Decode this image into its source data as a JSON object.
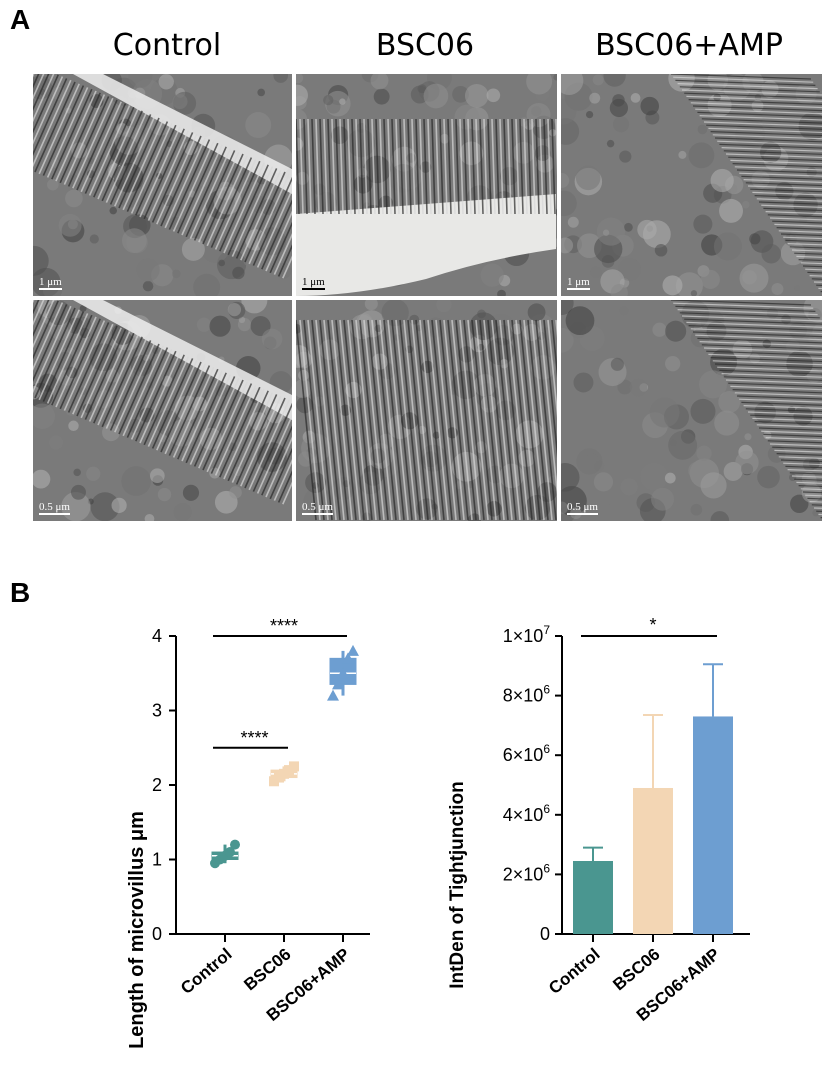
{
  "panels": {
    "a": "A",
    "b": "B"
  },
  "columns": [
    "Control",
    "BSC06",
    "BSC06+AMP"
  ],
  "micrographs": {
    "row1_scale": [
      "1 μm",
      "1 μm",
      "1 μm"
    ],
    "row2_scale": [
      "0.5 μm",
      "0.5 μm",
      "0.5 μm"
    ]
  },
  "chart_data": [
    {
      "type": "box",
      "ylabel": "Length of microvillus μm",
      "xlabel": "",
      "categories": [
        "Control",
        "BSC06",
        "BSC06+AMP"
      ],
      "ylim": [
        0,
        4
      ],
      "yticks": [
        "0",
        "1",
        "2",
        "3",
        "4"
      ],
      "series": [
        {
          "values": [
            0.95,
            1.0,
            1.05,
            1.1,
            1.2
          ]
        },
        {
          "values": [
            2.05,
            2.1,
            2.15,
            2.2,
            2.25
          ]
        },
        {
          "values": [
            3.2,
            3.35,
            3.5,
            3.7,
            3.8
          ]
        }
      ],
      "marker_shapes": [
        "circle",
        "square",
        "triangle"
      ],
      "colors": [
        "#4a9690",
        "#f3d6b4",
        "#6d9ed1"
      ],
      "significance": [
        {
          "from": 0,
          "to": 2,
          "label": "****",
          "y": 4.0
        },
        {
          "from": 0,
          "to": 1,
          "label": "****",
          "y": 2.5
        }
      ]
    },
    {
      "type": "bar",
      "ylabel": "IntDen of Tightjunction",
      "xlabel": "",
      "categories": [
        "Control",
        "BSC06",
        "BSC06+AMP"
      ],
      "values": [
        2450000,
        4900000,
        7300000
      ],
      "errors": [
        450000,
        2450000,
        1750000
      ],
      "ylim": [
        0,
        10000000
      ],
      "yticks": [
        {
          "mant": "0",
          "exp": ""
        },
        {
          "mant": "2×10",
          "exp": "6"
        },
        {
          "mant": "4×10",
          "exp": "6"
        },
        {
          "mant": "6×10",
          "exp": "6"
        },
        {
          "mant": "8×10",
          "exp": "6"
        },
        {
          "mant": "1×10",
          "exp": "7"
        }
      ],
      "colors": [
        "#4a9690",
        "#f3d6b4",
        "#6d9ed1"
      ],
      "significance": [
        {
          "from": 0,
          "to": 2,
          "label": "*",
          "y": 10000000
        }
      ]
    }
  ]
}
